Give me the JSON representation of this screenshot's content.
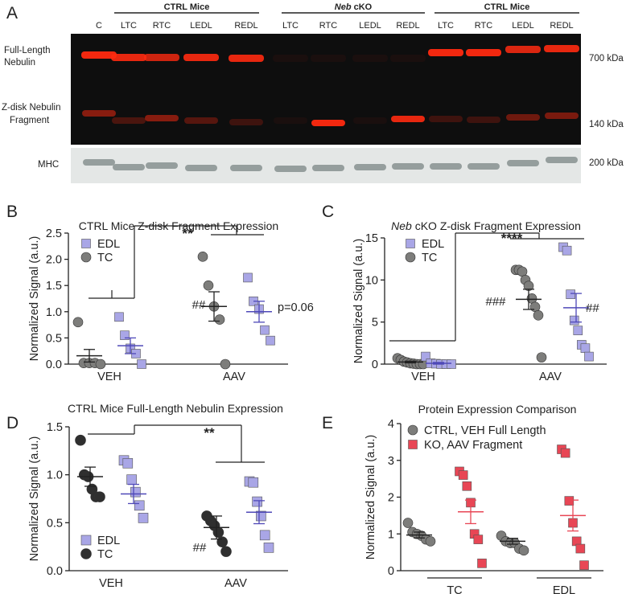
{
  "panel_labels": [
    "A",
    "B",
    "C",
    "D",
    "E"
  ],
  "blot": {
    "groups": [
      {
        "label": "CTRL Mice",
        "lanes": [
          "LTC",
          "RTC",
          "LEDL",
          "REDL"
        ]
      },
      {
        "label": "Neb cKO",
        "lanes": [
          "LTC",
          "RTC",
          "LEDL",
          "REDL"
        ]
      },
      {
        "label": "CTRL Mice",
        "lanes": [
          "LTC",
          "RTC",
          "LEDL",
          "REDL"
        ]
      }
    ],
    "control_lane": "C",
    "row_labels": {
      "full_length_1": "Full-Length",
      "full_length_2": "Nebulin",
      "zdisk_1": "Z-disk Nebulin",
      "zdisk_2": "Fragment",
      "mhc": "MHC"
    },
    "sizes": [
      "700 kDa",
      "140 kDa",
      "200 kDa"
    ],
    "band_colors": {
      "red": "#ff2a10",
      "gel": "#0e0e0e",
      "mhc_bg": "#e4e7e6",
      "mhc_band": "#7b8584"
    }
  },
  "colors": {
    "edl": "#a9a6e6",
    "tc": "#7d7d7b",
    "tc_dark": "#2f2f2f",
    "ko": "#e84655",
    "mean_blue": "#4f49b8",
    "mean_red": "#e84655"
  },
  "chart_data": [
    {
      "panel": "B",
      "type": "scatter",
      "title": "CTRL Mice Z-disk Fragment Expression",
      "ylabel": "Normalized Signal (a.u.)",
      "ylim": [
        0,
        2.5
      ],
      "yticks": [
        0.0,
        0.5,
        1.0,
        1.5,
        2.0,
        2.5
      ],
      "ytick_labels": [
        "0.0",
        "0.5",
        "1.0",
        "1.5",
        "2.0",
        "2.5"
      ],
      "categories": [
        "VEH",
        "AAV"
      ],
      "legend": [
        "EDL",
        "TC"
      ],
      "series": [
        {
          "name": "TC",
          "category": "VEH",
          "values": [
            0.8,
            0.02,
            0.02,
            0.02,
            0.0
          ],
          "mean": 0.16,
          "sem": 0.12
        },
        {
          "name": "EDL",
          "category": "VEH",
          "values": [
            0.9,
            0.55,
            0.3,
            0.2,
            0.0
          ],
          "mean": 0.35,
          "sem": 0.15
        },
        {
          "name": "TC",
          "category": "AAV",
          "values": [
            2.05,
            1.5,
            1.1,
            0.85,
            0.0
          ],
          "mean": 1.1,
          "sem": 0.28
        },
        {
          "name": "EDL",
          "category": "AAV",
          "values": [
            1.65,
            1.2,
            1.05,
            0.65,
            0.45
          ],
          "mean": 1.0,
          "sem": 0.2
        }
      ],
      "annotations": {
        "sig": "**",
        "hash": "##",
        "pval": "p=0.06"
      }
    },
    {
      "panel": "C",
      "type": "scatter",
      "title_italic": "Neb",
      "title": "cKO Z-disk Fragment Expression",
      "ylabel": "Normalized Signal (a.u.)",
      "ylim": [
        0,
        15
      ],
      "yticks": [
        0,
        5,
        10,
        15
      ],
      "ytick_labels": [
        "0",
        "5",
        "10",
        "15"
      ],
      "categories": [
        "VEH",
        "AAV"
      ],
      "legend": [
        "EDL",
        "TC"
      ],
      "series": [
        {
          "name": "TC",
          "category": "VEH",
          "values": [
            0.7,
            0.5,
            0.3,
            0.2,
            0.1,
            0.05,
            0.0,
            0.0,
            0.0
          ],
          "mean": 0.25,
          "sem": 0.1
        },
        {
          "name": "EDL",
          "category": "VEH",
          "values": [
            0.9,
            0.1,
            0.05,
            0.0,
            0.0,
            0.0
          ],
          "mean": 0.1,
          "sem": 0.1
        },
        {
          "name": "TC",
          "category": "AAV",
          "values": [
            11.2,
            11.2,
            11.0,
            10.0,
            9.3,
            7.8,
            6.8,
            5.8,
            0.8
          ],
          "mean": 7.7,
          "sem": 1.2
        },
        {
          "name": "EDL",
          "category": "AAV",
          "values": [
            13.9,
            13.5,
            8.3,
            5.2,
            4.0,
            2.3,
            1.9,
            0.9
          ],
          "mean": 6.7,
          "sem": 1.7
        }
      ],
      "annotations": {
        "sig": "****",
        "hash_left": "###",
        "hash_right": "##"
      }
    },
    {
      "panel": "D",
      "type": "scatter",
      "title": "CTRL Mice Full-Length Nebulin Expression",
      "ylabel": "Normalized Signal (a.u.)",
      "ylim": [
        0,
        1.5
      ],
      "yticks": [
        0.0,
        0.5,
        1.0,
        1.5
      ],
      "ytick_labels": [
        "0.0",
        "0.5",
        "1.0",
        "1.5"
      ],
      "categories": [
        "VEH",
        "AAV"
      ],
      "legend": [
        "EDL",
        "TC"
      ],
      "series": [
        {
          "name": "TC",
          "category": "VEH",
          "values": [
            1.36,
            1.0,
            0.98,
            0.85,
            0.77,
            0.77
          ],
          "mean": 0.98,
          "sem": 0.1
        },
        {
          "name": "EDL",
          "category": "VEH",
          "values": [
            1.15,
            1.12,
            0.95,
            0.82,
            0.68,
            0.55
          ],
          "mean": 0.8,
          "sem": 0.1
        },
        {
          "name": "TC",
          "category": "AAV",
          "values": [
            0.57,
            0.52,
            0.47,
            0.4,
            0.3,
            0.2
          ],
          "mean": 0.45,
          "sem": 0.12
        },
        {
          "name": "EDL",
          "category": "AAV",
          "values": [
            0.93,
            0.92,
            0.72,
            0.57,
            0.37,
            0.24
          ],
          "mean": 0.61,
          "sem": 0.12
        }
      ],
      "annotations": {
        "sig": "**",
        "hash": "##"
      }
    },
    {
      "panel": "E",
      "type": "scatter",
      "title": "Protein Expression Comparison",
      "ylabel": "Normalized Signal (a.u.)",
      "ylim": [
        0,
        4
      ],
      "yticks": [
        0,
        1,
        2,
        3,
        4
      ],
      "ytick_labels": [
        "0",
        "1",
        "2",
        "3",
        "4"
      ],
      "categories": [
        "TC",
        "EDL"
      ],
      "legend": [
        "CTRL, VEH Full Length",
        "KO, AAV Fragment"
      ],
      "series": [
        {
          "name": "CTRL, VEH Full Length",
          "category": "TC",
          "values": [
            1.3,
            1.05,
            1.0,
            0.95,
            0.85,
            0.8
          ],
          "mean": 0.97,
          "sem": 0.08
        },
        {
          "name": "KO, AAV Fragment",
          "category": "TC",
          "values": [
            2.7,
            2.6,
            2.3,
            1.85,
            1.0,
            0.85,
            0.2
          ],
          "mean": 1.6,
          "sem": 0.32
        },
        {
          "name": "CTRL, VEH Full Length",
          "category": "EDL",
          "values": [
            0.95,
            0.8,
            0.75,
            0.75,
            0.6,
            0.55
          ],
          "mean": 0.8,
          "sem": 0.08
        },
        {
          "name": "KO, AAV Fragment",
          "category": "EDL",
          "values": [
            3.3,
            3.2,
            1.9,
            1.3,
            0.8,
            0.6,
            0.15
          ],
          "mean": 1.5,
          "sem": 0.42
        }
      ]
    }
  ]
}
